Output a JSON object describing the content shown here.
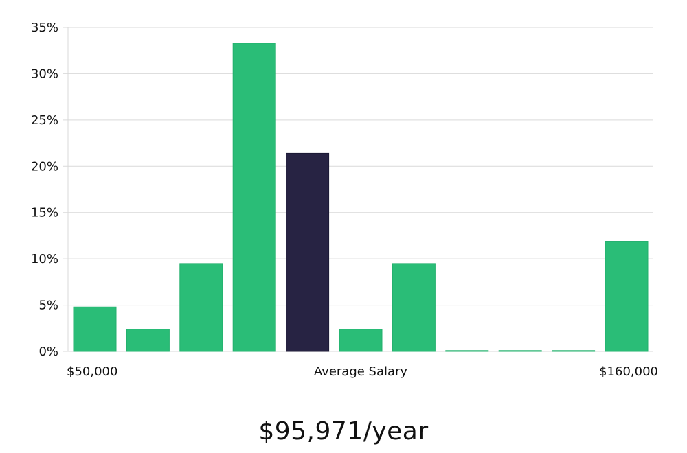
{
  "colors": {
    "bar": "#2abd77",
    "bar_highlight": "#272343",
    "grid": "#d9d9d9",
    "text": "#111111"
  },
  "salary_text": "$95,971/year",
  "chart_data": {
    "type": "bar",
    "title": "",
    "xlabel": "Average Salary",
    "ylabel": "",
    "x_min_label": "$50,000",
    "x_max_label": "$160,000",
    "ylim": [
      0,
      35
    ],
    "yticks": [
      0,
      5,
      10,
      15,
      20,
      25,
      30,
      35
    ],
    "ytick_labels": [
      "0%",
      "5%",
      "10%",
      "15%",
      "20%",
      "25%",
      "30%",
      "35%"
    ],
    "grid": true,
    "values": [
      4.8,
      2.4,
      9.5,
      33.3,
      21.4,
      2.4,
      9.5,
      0,
      0,
      0,
      11.9
    ],
    "highlight_index": 4
  }
}
